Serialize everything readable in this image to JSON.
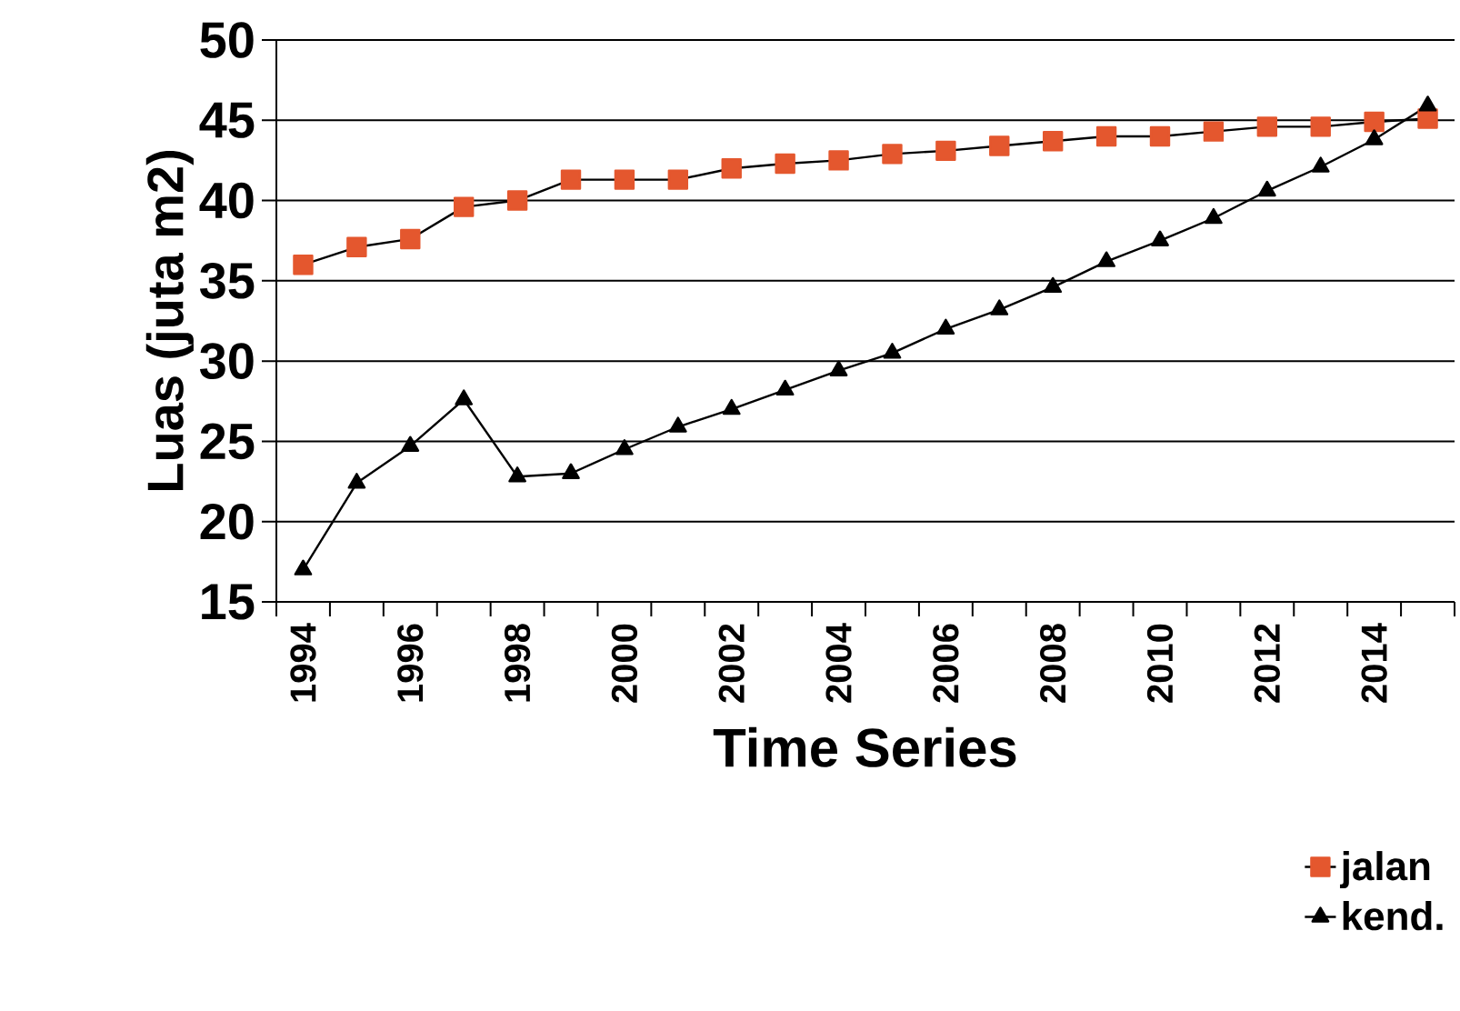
{
  "chart_data": {
    "type": "line",
    "xlabel": "Time Series",
    "ylabel": "Luas (juta m2)",
    "categories": [
      "1994",
      null,
      "1996",
      null,
      "1998",
      null,
      "2000",
      null,
      "2002",
      null,
      "2004",
      null,
      "2006",
      null,
      "2008",
      null,
      "2010",
      null,
      "2012",
      null,
      "2014",
      null
    ],
    "series": [
      {
        "name": "jalan",
        "color": "#e4572e",
        "marker": "square",
        "values": [
          36.0,
          37.1,
          37.6,
          39.6,
          40.0,
          41.3,
          41.3,
          41.3,
          42.0,
          42.3,
          42.5,
          42.9,
          43.1,
          43.4,
          43.7,
          44.0,
          44.0,
          44.3,
          44.6,
          44.6,
          44.9,
          45.1
        ]
      },
      {
        "name": "kend.",
        "color": "#000000",
        "marker": "triangle",
        "values": [
          17.0,
          22.4,
          24.7,
          27.6,
          22.8,
          23.0,
          24.5,
          25.9,
          27.0,
          28.2,
          29.4,
          30.5,
          32.0,
          33.2,
          34.6,
          36.2,
          37.5,
          38.9,
          40.6,
          42.1,
          43.8,
          45.9
        ]
      }
    ],
    "ylim": [
      15,
      50
    ],
    "yticks": [
      15,
      20,
      25,
      30,
      35,
      40,
      45,
      50
    ],
    "grid": "y",
    "legend": "bottom right",
    "line_style": "solid"
  }
}
